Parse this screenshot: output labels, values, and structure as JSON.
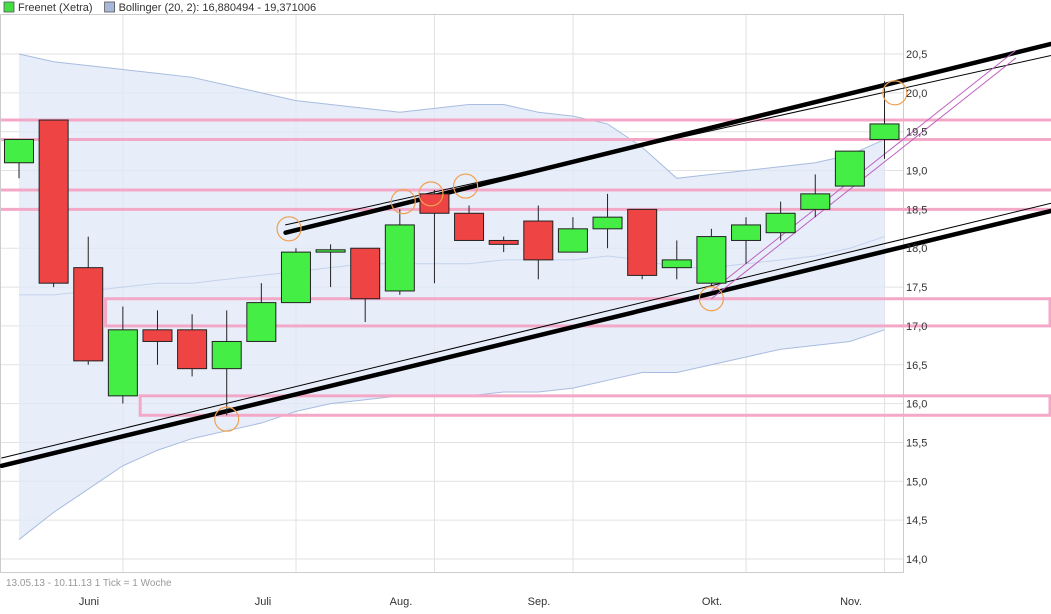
{
  "legend": [
    {
      "label": "Freenet (Xetra)",
      "color": "#44dd44"
    },
    {
      "label": "Bollinger (20, 2): 16,880494 - 19,371006",
      "color": "#a8b8d8"
    }
  ],
  "footer": "13.05.13 - 10.11.13   1 Tick = 1 Woche",
  "chart_data": {
    "type": "candlestick",
    "title": "",
    "ylim": [
      13.7,
      20.8
    ],
    "y_ticks": [
      "14,0",
      "14,5",
      "15,0",
      "15,5",
      "16,0",
      "16,5",
      "17,0",
      "17,5",
      "18,0",
      "18,5",
      "19,0",
      "19,5",
      "20,0",
      "20,5"
    ],
    "x_tick_labels": [
      "Juni",
      "Juli",
      "Aug.",
      "Sep.",
      "Okt.",
      "Nov."
    ],
    "up_color": "#44ee44",
    "down_color": "#ee4444",
    "candles": [
      {
        "o": 19.1,
        "h": 19.4,
        "l": 18.9,
        "c": 19.4
      },
      {
        "o": 19.65,
        "h": 19.65,
        "l": 17.5,
        "c": 17.55
      },
      {
        "o": 17.75,
        "h": 18.15,
        "l": 16.5,
        "c": 16.55
      },
      {
        "o": 16.1,
        "h": 17.25,
        "l": 16.0,
        "c": 16.95
      },
      {
        "o": 16.95,
        "h": 17.2,
        "l": 16.5,
        "c": 16.8
      },
      {
        "o": 16.95,
        "h": 17.15,
        "l": 16.35,
        "c": 16.45
      },
      {
        "o": 16.45,
        "h": 17.2,
        "l": 15.85,
        "c": 16.8
      },
      {
        "o": 16.8,
        "h": 17.55,
        "l": 16.8,
        "c": 17.3
      },
      {
        "o": 17.3,
        "h": 18.0,
        "l": 17.3,
        "c": 17.95
      },
      {
        "o": 17.95,
        "h": 18.05,
        "l": 17.5,
        "c": 17.98
      },
      {
        "o": 18.0,
        "h": 18.0,
        "l": 17.05,
        "c": 17.35
      },
      {
        "o": 17.45,
        "h": 18.5,
        "l": 17.4,
        "c": 18.3
      },
      {
        "o": 18.7,
        "h": 18.75,
        "l": 17.55,
        "c": 18.45
      },
      {
        "o": 18.45,
        "h": 18.55,
        "l": 18.1,
        "c": 18.1
      },
      {
        "o": 18.1,
        "h": 18.15,
        "l": 17.95,
        "c": 18.05
      },
      {
        "o": 18.35,
        "h": 18.55,
        "l": 17.6,
        "c": 17.85
      },
      {
        "o": 17.95,
        "h": 18.4,
        "l": 17.95,
        "c": 18.25
      },
      {
        "o": 18.25,
        "h": 18.7,
        "l": 18.0,
        "c": 18.4
      },
      {
        "o": 18.5,
        "h": 18.5,
        "l": 17.6,
        "c": 17.65
      },
      {
        "o": 17.75,
        "h": 18.1,
        "l": 17.6,
        "c": 17.85
      },
      {
        "o": 17.55,
        "h": 18.25,
        "l": 17.5,
        "c": 18.15
      },
      {
        "o": 18.1,
        "h": 18.4,
        "l": 17.8,
        "c": 18.3
      },
      {
        "o": 18.2,
        "h": 18.6,
        "l": 18.1,
        "c": 18.45
      },
      {
        "o": 18.5,
        "h": 18.95,
        "l": 18.4,
        "c": 18.7
      },
      {
        "o": 18.8,
        "h": 19.25,
        "l": 18.8,
        "c": 19.25
      },
      {
        "o": 19.4,
        "h": 20.15,
        "l": 19.15,
        "c": 19.6
      }
    ],
    "bollinger_upper": [
      20.5,
      20.4,
      20.35,
      20.3,
      20.25,
      20.2,
      20.1,
      20.0,
      19.9,
      19.85,
      19.8,
      19.75,
      19.8,
      19.85,
      19.85,
      19.75,
      19.7,
      19.6,
      19.3,
      18.9,
      18.95,
      19.0,
      19.05,
      19.1,
      19.2,
      19.4
    ],
    "bollinger_lower": [
      14.25,
      14.6,
      14.9,
      15.2,
      15.4,
      15.55,
      15.65,
      15.75,
      15.9,
      16.0,
      16.05,
      16.1,
      16.1,
      16.1,
      16.15,
      16.15,
      16.2,
      16.3,
      16.4,
      16.4,
      16.5,
      16.6,
      16.7,
      16.75,
      16.8,
      16.95
    ],
    "bollinger_middle": [
      17.4,
      17.4,
      17.45,
      17.5,
      17.55,
      17.55,
      17.6,
      17.65,
      17.7,
      17.75,
      17.8,
      17.8,
      17.8,
      17.8,
      17.85,
      17.85,
      17.85,
      17.9,
      17.85,
      17.75,
      17.75,
      17.8,
      17.85,
      17.9,
      18.0,
      18.15
    ],
    "horizontal_lines": [
      19.65,
      19.4,
      18.75,
      18.5
    ],
    "boxes": [
      {
        "x0": 2.5,
        "x1": 30,
        "y0": 17.35,
        "y1": 17.0
      },
      {
        "x0": 3.5,
        "x1": 30,
        "y0": 16.1,
        "y1": 15.85
      }
    ],
    "trendlines": [
      {
        "x0": -0.5,
        "y0": 15.2,
        "x1": 30,
        "y1": 18.5,
        "w": 4.5
      },
      {
        "x0": -0.5,
        "y0": 15.3,
        "x1": 30,
        "y1": 18.6,
        "w": 1
      },
      {
        "x0": 7.7,
        "y0": 18.2,
        "x1": 30,
        "y1": 20.65,
        "w": 4.5
      },
      {
        "x0": 7.7,
        "y0": 18.3,
        "x1": 30,
        "y1": 20.5,
        "w": 1
      }
    ],
    "channel_lines": [
      {
        "x0": 20,
        "y0": 17.35,
        "x1": 28.8,
        "y1": 20.45
      },
      {
        "x0": 20,
        "y0": 17.45,
        "x1": 28.8,
        "y1": 20.55
      }
    ],
    "markers": [
      {
        "x": 7.8,
        "y": 18.25
      },
      {
        "x": 11.1,
        "y": 18.6
      },
      {
        "x": 11.9,
        "y": 18.7
      },
      {
        "x": 12.9,
        "y": 18.8
      },
      {
        "x": 6.0,
        "y": 15.8
      },
      {
        "x": 20.0,
        "y": 17.35
      },
      {
        "x": 25.3,
        "y": 20.0
      }
    ]
  }
}
